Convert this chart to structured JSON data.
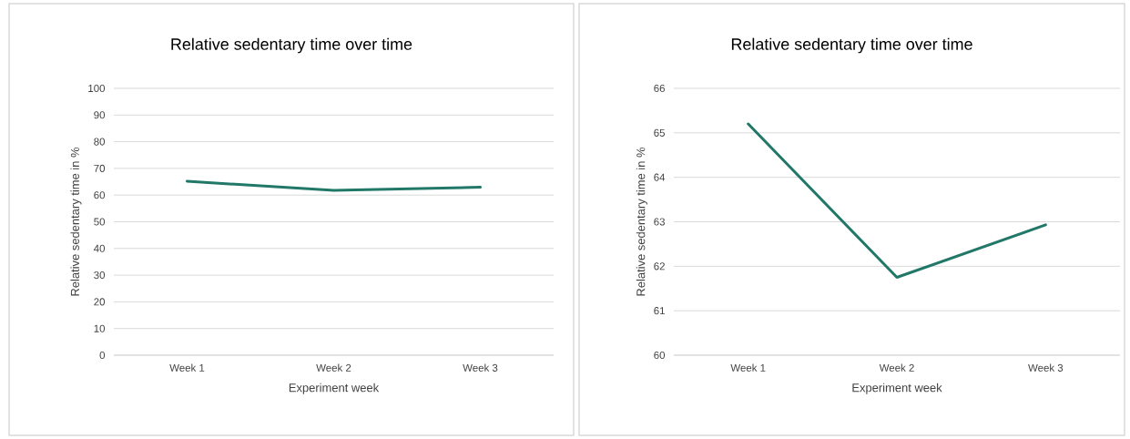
{
  "chart_data": [
    {
      "type": "line",
      "title": "Relative sedentary time over time",
      "xlabel": "Experiment week",
      "ylabel": "Relative sedentary time in %",
      "categories": [
        "Week 1",
        "Week 2",
        "Week 3"
      ],
      "series": [
        {
          "color": "#217868",
          "values": [
            65.2,
            61.75,
            62.93
          ]
        }
      ],
      "ylim": [
        0,
        100
      ],
      "yticks": [
        0,
        10,
        20,
        30,
        40,
        50,
        60,
        70,
        80,
        90,
        100
      ],
      "grid": "y"
    },
    {
      "type": "line",
      "title": "Relative sedentary time over time",
      "xlabel": "Experiment week",
      "ylabel": "Relative sedentary time in %",
      "categories": [
        "Week 1",
        "Week 2",
        "Week 3"
      ],
      "series": [
        {
          "color": "#217868",
          "values": [
            65.2,
            61.75,
            62.93
          ]
        }
      ],
      "ylim": [
        60,
        66
      ],
      "yticks": [
        60,
        61,
        62,
        63,
        64,
        65,
        66
      ],
      "grid": "y"
    }
  ]
}
